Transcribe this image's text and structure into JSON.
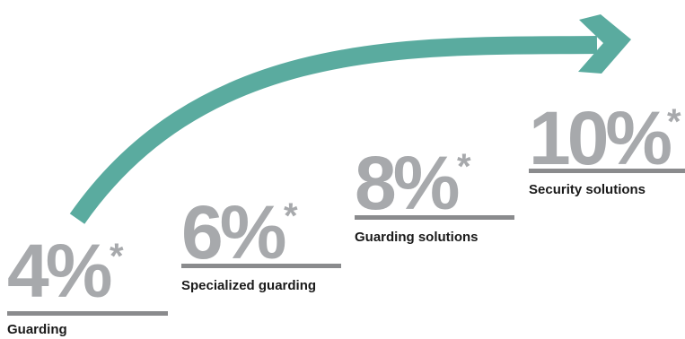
{
  "colors": {
    "arrow": "#5aab9f",
    "percent": "#a7a9ac",
    "rule": "#8a8b8d",
    "label": "#1a1a1a"
  },
  "steps": [
    {
      "value": "4%",
      "marker": "*",
      "label": "Guarding"
    },
    {
      "value": "6%",
      "marker": "*",
      "label": "Specialized guarding"
    },
    {
      "value": "8%",
      "marker": "*",
      "label": "Guarding solutions"
    },
    {
      "value": "10%",
      "marker": "*",
      "label": "Security solutions"
    }
  ]
}
